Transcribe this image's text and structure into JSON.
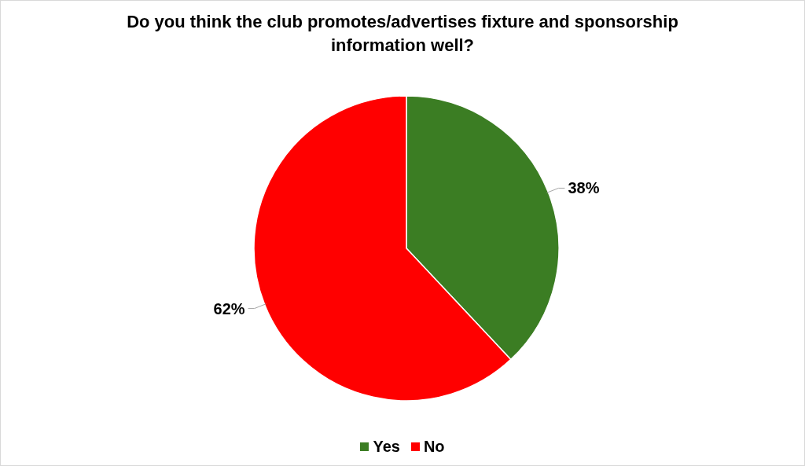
{
  "chart_data": {
    "type": "pie",
    "title": "Do you think the club promotes/advertises fixture and sponsorship information well?",
    "categories": [
      "Yes",
      "No"
    ],
    "values": [
      38,
      62
    ],
    "value_labels": [
      "38%",
      "62%"
    ],
    "colors": [
      "#3b7d23",
      "#ff0000"
    ],
    "legend": "bottom"
  }
}
